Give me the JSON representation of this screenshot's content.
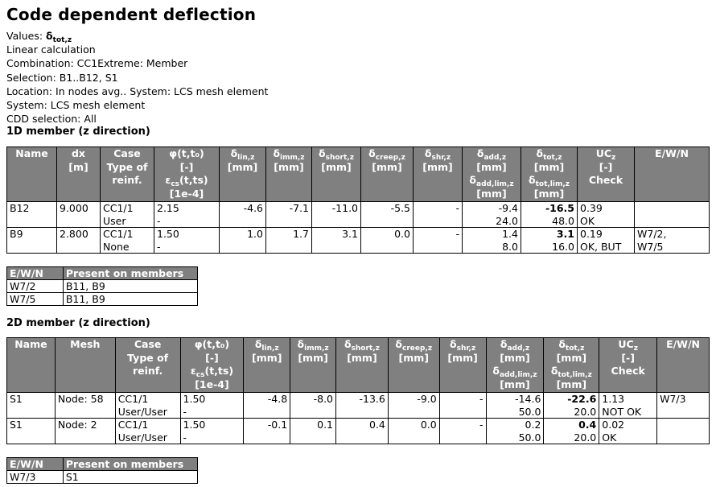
{
  "title": "Code dependent deflection",
  "info": {
    "values_label": "Values:",
    "values_symbol": "δ",
    "values_sub": "tot,z",
    "calc": "Linear calculation",
    "combination": "Combination: CC1Extreme: Member",
    "selection": "Selection: B1..B12, S1",
    "location": "Location: In nodes avg.. System: LCS mesh element",
    "system": "System: LCS mesh element",
    "cdd": "CDD selection: All"
  },
  "section_1d": "1D member (z direction)",
  "section_2d": "2D member (z direction)",
  "headers": {
    "name": "Name",
    "dx": "dx",
    "m_unit": "[m]",
    "mesh": "Mesh",
    "case": "Case",
    "type_of": "Type of",
    "reinf": "reinf.",
    "phi": "φ(t,t₀)",
    "dash": "[-]",
    "eps": "ε",
    "eps_sub": "cs",
    "eps_args": "(t,ts)",
    "eps_unit": "[1e-4]",
    "delta": "δ",
    "lin": "lin,z",
    "imm": "imm,z",
    "short": "short,z",
    "creep": "creep,z",
    "shr": "shr,z",
    "add": "add,z",
    "add_lim": "add,lim,z",
    "tot": "tot,z",
    "tot_lim": "tot,lim,z",
    "mm": "[mm]",
    "uc": "UC",
    "uc_sub": "z",
    "check": "Check",
    "ewn": "E/W/N"
  },
  "rows_1d": [
    {
      "name": "B12",
      "dx": "9.000",
      "case": "CC1/1",
      "type": "User",
      "phi": "2.15",
      "eps": "-",
      "lin": "-4.6",
      "imm": "-7.1",
      "short": "-11.0",
      "creep": "-5.5",
      "shr": "-",
      "add": "-9.4",
      "add_lim": "24.0",
      "tot": "-16.5",
      "tot_lim": "48.0",
      "uc": "0.39",
      "check": "OK",
      "ewn1": "",
      "ewn2": ""
    },
    {
      "name": "B9",
      "dx": "2.800",
      "case": "CC1/1",
      "type": "None",
      "phi": "1.50",
      "eps": "-",
      "lin": "1.0",
      "imm": "1.7",
      "short": "3.1",
      "creep": "0.0",
      "shr": "-",
      "add": "1.4",
      "add_lim": "8.0",
      "tot": "3.1",
      "tot_lim": "16.0",
      "uc": "0.19",
      "check": "OK, BUT",
      "ewn1": "W7/2,",
      "ewn2": "W7/5"
    }
  ],
  "rows_2d": [
    {
      "name": "S1",
      "mesh": "Node: 58",
      "case": "CC1/1",
      "type": "User/User",
      "phi": "1.50",
      "eps": "-",
      "lin": "-4.8",
      "imm": "-8.0",
      "short": "-13.6",
      "creep": "-9.0",
      "shr": "-",
      "add": "-14.6",
      "add_lim": "50.0",
      "tot": "-22.6",
      "tot_lim": "20.0",
      "uc": "1.13",
      "check": "NOT OK",
      "ewn1": "W7/3",
      "ewn2": ""
    },
    {
      "name": "S1",
      "mesh": "Node: 2",
      "case": "CC1/1",
      "type": "User/User",
      "phi": "1.50",
      "eps": "-",
      "lin": "-0.1",
      "imm": "0.1",
      "short": "0.4",
      "creep": "0.0",
      "shr": "-",
      "add": "0.2",
      "add_lim": "50.0",
      "tot": "0.4",
      "tot_lim": "20.0",
      "uc": "0.02",
      "check": "OK",
      "ewn1": "",
      "ewn2": ""
    }
  ],
  "ewn_table_1d": {
    "header_code": "E/W/N",
    "header_members": "Present on members",
    "rows": [
      {
        "code": "W7/2",
        "members": "B11, B9"
      },
      {
        "code": "W7/5",
        "members": "B11, B9"
      }
    ]
  },
  "ewn_table_2d": {
    "header_code": "E/W/N",
    "header_members": "Present on members",
    "rows": [
      {
        "code": "W7/3",
        "members": "S1"
      }
    ]
  }
}
